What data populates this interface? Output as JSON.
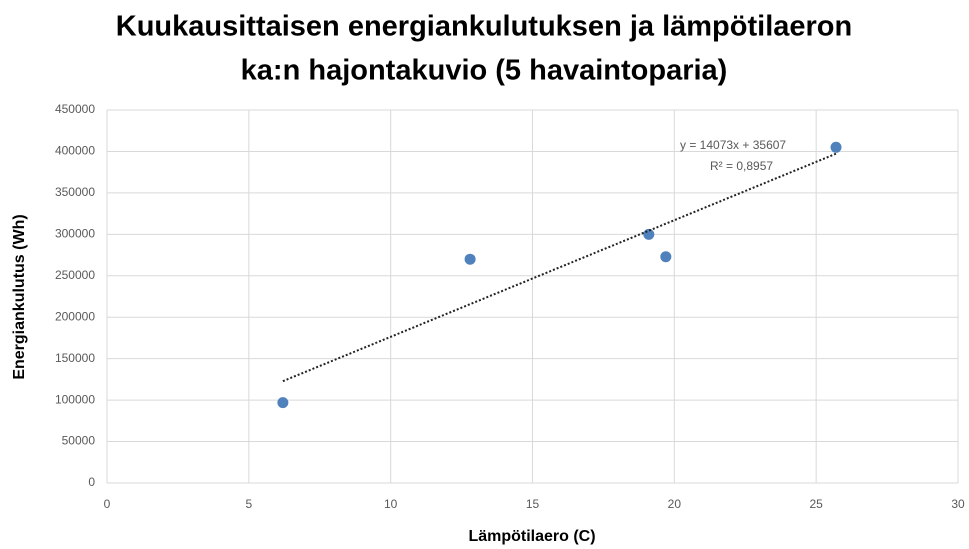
{
  "chart_data": {
    "type": "scatter",
    "title": [
      "Kuukausittaisen energiankulutuksen ja lämpötilaeron",
      "ka:n hajontakuvio (5 havaintoparia)"
    ],
    "x_label": "Lämpötilaero (C)",
    "y_label": "Energiankulutus (Wh)",
    "series": [
      {
        "name": "Energiankulutus",
        "color": "#4f81bd",
        "x": [
          6.2,
          12.8,
          19.1,
          19.7,
          25.7
        ],
        "values": [
          97000,
          270000,
          300000,
          273000,
          405000
        ]
      }
    ],
    "trendline": {
      "slope": 14073,
      "intercept": 35607,
      "label": "y = 14073x + 35607",
      "r2_label": "R² = 0,8957"
    },
    "xlim": [
      0,
      30
    ],
    "xticks": [
      0,
      5,
      10,
      15,
      20,
      25,
      30
    ],
    "ylim": [
      0,
      450000
    ],
    "yticks": [
      0,
      50000,
      100000,
      150000,
      200000,
      250000,
      300000,
      350000,
      400000,
      450000
    ],
    "grid": true
  }
}
